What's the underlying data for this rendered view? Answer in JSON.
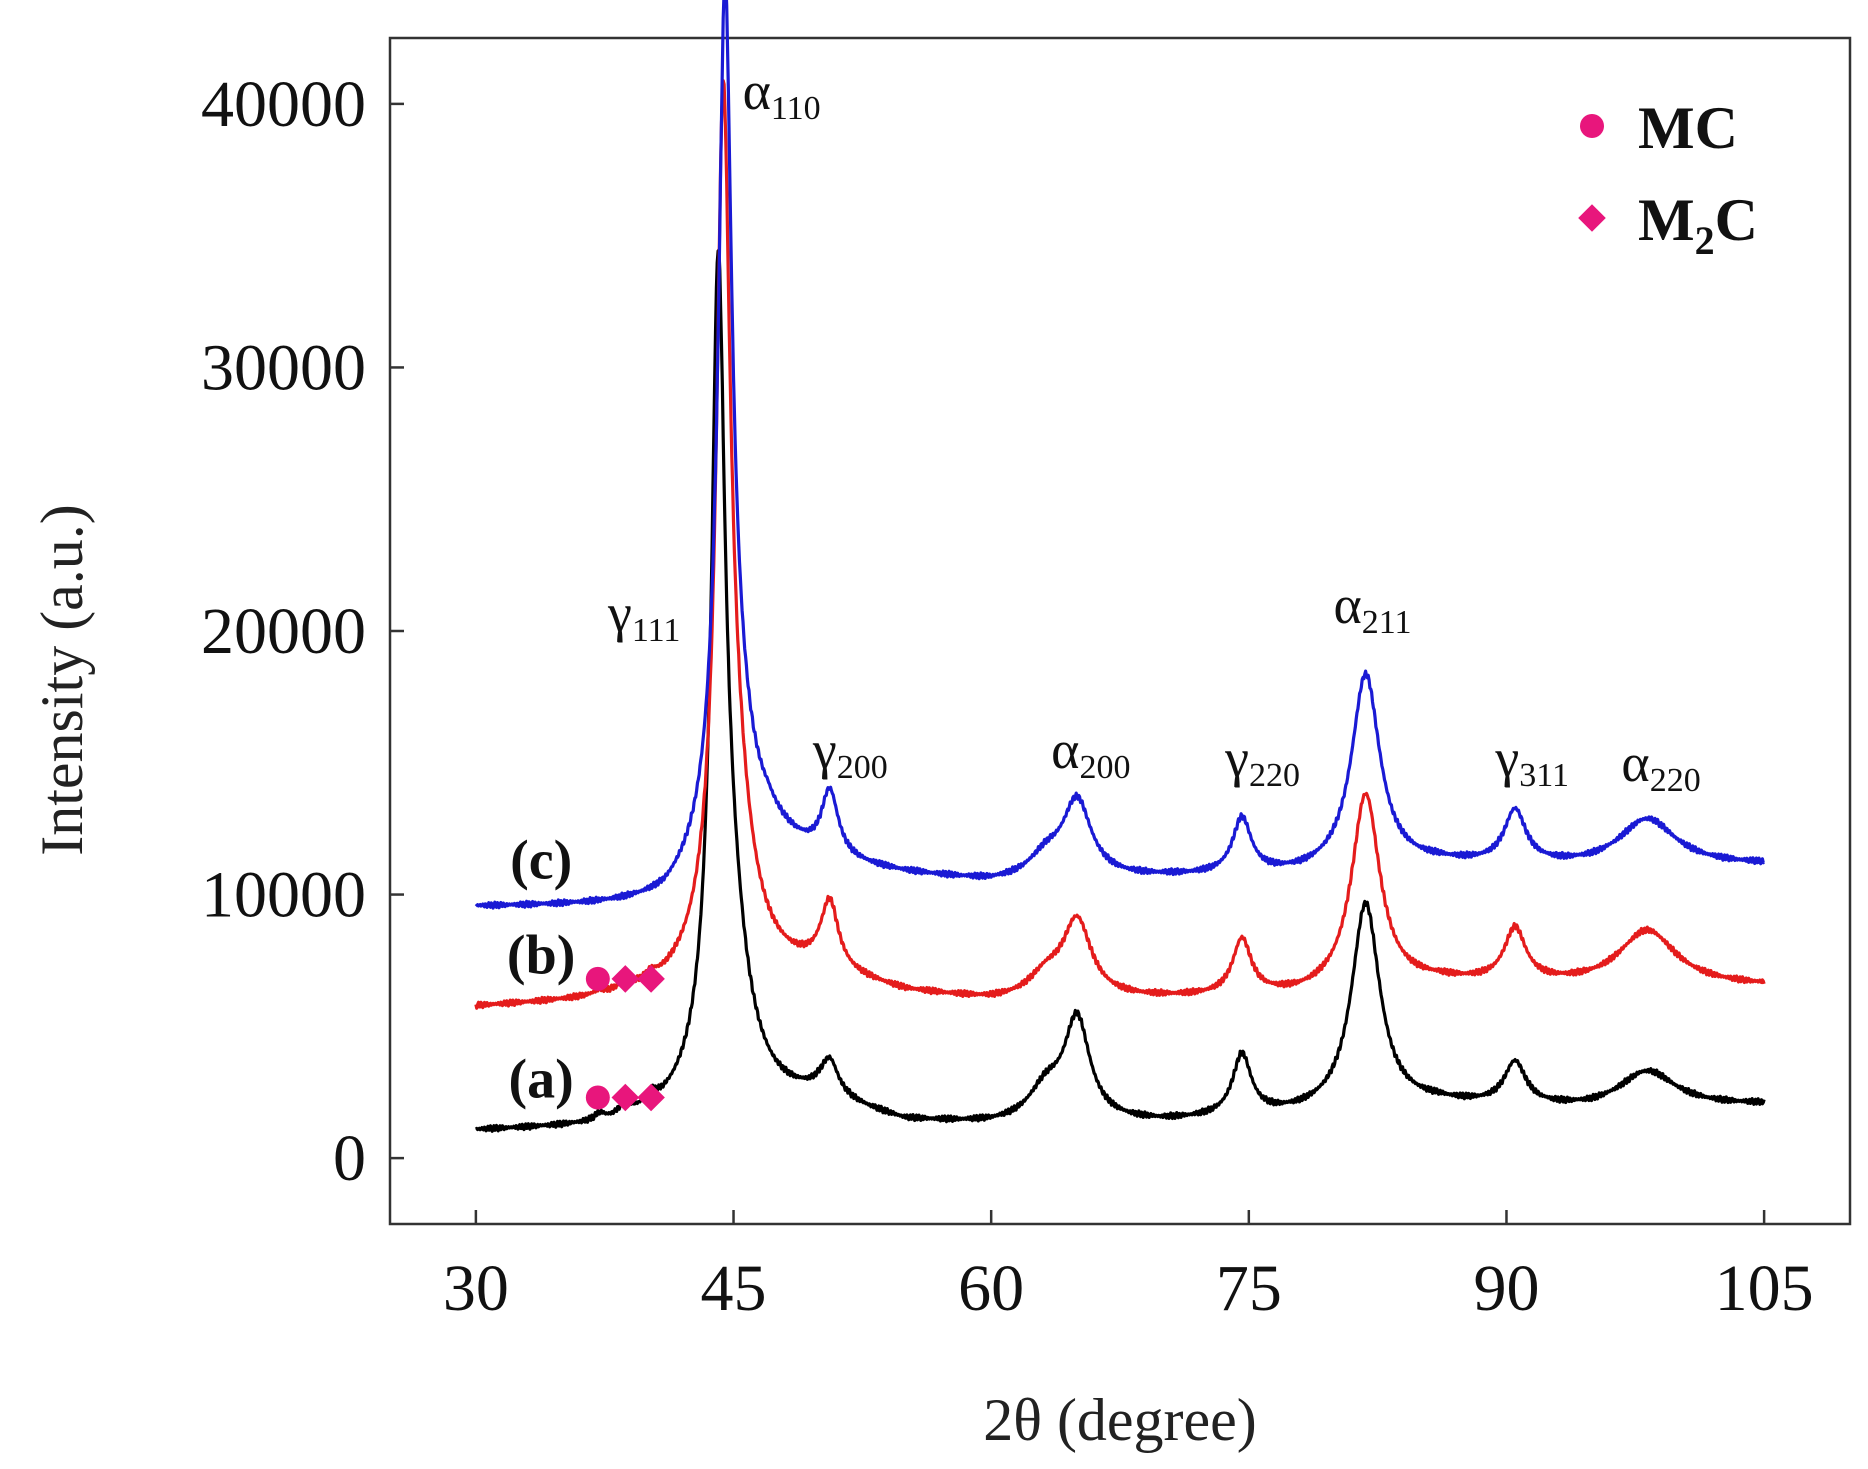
{
  "chart_data": {
    "type": "line",
    "xlabel": "2θ (degree)",
    "ylabel": "Intensity (a.u.)",
    "xlim": [
      25,
      110
    ],
    "ylim": [
      -2500,
      42500
    ],
    "xticks": [
      30,
      45,
      60,
      75,
      90,
      105
    ],
    "yticks": [
      0,
      10000,
      20000,
      30000,
      40000
    ],
    "x_tick_labels": [
      "30",
      "45",
      "60",
      "75",
      "90",
      "105"
    ],
    "y_tick_labels": [
      "0",
      "10000",
      "20000",
      "30000",
      "40000"
    ],
    "series": [
      {
        "name": "(a)",
        "color": "#000000",
        "baseline": [
          [
            30,
            1000
          ],
          [
            37,
            1100
          ],
          [
            41,
            1300
          ],
          [
            44,
            1500
          ],
          [
            50,
            2100
          ],
          [
            55,
            1300
          ],
          [
            60,
            1200
          ],
          [
            70,
            1300
          ],
          [
            78,
            1600
          ],
          [
            86,
            2000
          ],
          [
            95,
            1800
          ],
          [
            105,
            2000
          ]
        ],
        "peaks": [
          {
            "x": 37.2,
            "height": 250,
            "width": 0.35
          },
          {
            "x": 38.7,
            "height": 500,
            "width": 0.35
          },
          {
            "x": 40.2,
            "height": 350,
            "width": 0.35
          },
          {
            "x": 44.1,
            "height": 26000,
            "width": 0.45
          },
          {
            "x": 44.6,
            "height": 8000,
            "width": 1.3
          },
          {
            "x": 50.6,
            "height": 1300,
            "width": 0.6
          },
          {
            "x": 63.2,
            "height": 1200,
            "width": 1.2
          },
          {
            "x": 65.0,
            "height": 3800,
            "width": 0.9
          },
          {
            "x": 74.6,
            "height": 2300,
            "width": 0.65
          },
          {
            "x": 81.8,
            "height": 7800,
            "width": 1.0
          },
          {
            "x": 90.5,
            "height": 1600,
            "width": 0.75
          },
          {
            "x": 98.2,
            "height": 1400,
            "width": 2.0
          }
        ]
      },
      {
        "name": "(b)",
        "color": "#e41c1c",
        "baseline": [
          [
            30,
            5700
          ],
          [
            37,
            5900
          ],
          [
            41,
            6100
          ],
          [
            44,
            6500
          ],
          [
            50,
            6900
          ],
          [
            55,
            6200
          ],
          [
            60,
            5900
          ],
          [
            70,
            6000
          ],
          [
            78,
            6100
          ],
          [
            86,
            6600
          ],
          [
            95,
            6500
          ],
          [
            105,
            6500
          ]
        ],
        "peaks": [
          {
            "x": 37.2,
            "height": 150,
            "width": 0.35
          },
          {
            "x": 38.7,
            "height": 350,
            "width": 0.35
          },
          {
            "x": 40.2,
            "height": 250,
            "width": 0.35
          },
          {
            "x": 44.4,
            "height": 27000,
            "width": 0.45
          },
          {
            "x": 44.8,
            "height": 8000,
            "width": 1.3
          },
          {
            "x": 50.6,
            "height": 2500,
            "width": 0.6
          },
          {
            "x": 63.2,
            "height": 800,
            "width": 1.2
          },
          {
            "x": 65.0,
            "height": 2900,
            "width": 1.0
          },
          {
            "x": 74.6,
            "height": 2100,
            "width": 0.65
          },
          {
            "x": 81.8,
            "height": 7400,
            "width": 1.0
          },
          {
            "x": 90.5,
            "height": 2000,
            "width": 0.75
          },
          {
            "x": 98.2,
            "height": 2100,
            "width": 2.0
          }
        ]
      },
      {
        "name": "(c)",
        "color": "#1a1ad4",
        "baseline": [
          [
            30,
            9500
          ],
          [
            41,
            9500
          ],
          [
            44,
            10300
          ],
          [
            47,
            11700
          ],
          [
            50,
            11100
          ],
          [
            55,
            10700
          ],
          [
            60,
            10400
          ],
          [
            70,
            10600
          ],
          [
            78,
            10700
          ],
          [
            86,
            11100
          ],
          [
            95,
            11000
          ],
          [
            105,
            11100
          ]
        ],
        "peaks": [
          {
            "x": 44.5,
            "height": 28000,
            "width": 0.45
          },
          {
            "x": 44.8,
            "height": 6500,
            "width": 1.3
          },
          {
            "x": 50.6,
            "height": 2500,
            "width": 0.6
          },
          {
            "x": 63.2,
            "height": 800,
            "width": 1.2
          },
          {
            "x": 65.0,
            "height": 2900,
            "width": 1.0
          },
          {
            "x": 74.6,
            "height": 2100,
            "width": 0.65
          },
          {
            "x": 81.8,
            "height": 7400,
            "width": 1.0
          },
          {
            "x": 90.5,
            "height": 2000,
            "width": 0.75
          },
          {
            "x": 98.2,
            "height": 1800,
            "width": 2.0
          }
        ]
      }
    ],
    "peak_labels": [
      {
        "symbol": "γ",
        "sub": "111",
        "x": 39.8,
        "y": 20000
      },
      {
        "symbol": "α",
        "sub": "110",
        "x": 47.8,
        "y": 39800
      },
      {
        "symbol": "γ",
        "sub": "200",
        "x": 51.8,
        "y": 14800
      },
      {
        "symbol": "α",
        "sub": "200",
        "x": 65.8,
        "y": 14800
      },
      {
        "symbol": "γ",
        "sub": "220",
        "x": 75.8,
        "y": 14500
      },
      {
        "symbol": "α",
        "sub": "211",
        "x": 82.2,
        "y": 20300
      },
      {
        "symbol": "γ",
        "sub": "311",
        "x": 91.5,
        "y": 14500
      },
      {
        "symbol": "α",
        "sub": "220",
        "x": 99.0,
        "y": 14300
      }
    ],
    "curve_labels": [
      {
        "text": "(c)",
        "x": 33.8,
        "y": 10600
      },
      {
        "text": "(b)",
        "x": 33.8,
        "y": 7000
      },
      {
        "text": "(a)",
        "x": 33.8,
        "y": 2300
      }
    ],
    "markers": [
      {
        "series": "(b)",
        "shape": "circle",
        "x": 37.1,
        "y": 6800
      },
      {
        "series": "(b)",
        "shape": "diamond",
        "x": 38.7,
        "y": 6800
      },
      {
        "series": "(b)",
        "shape": "diamond",
        "x": 40.2,
        "y": 6800
      },
      {
        "series": "(a)",
        "shape": "circle",
        "x": 37.1,
        "y": 2300
      },
      {
        "series": "(a)",
        "shape": "diamond",
        "x": 38.7,
        "y": 2300
      },
      {
        "series": "(a)",
        "shape": "diamond",
        "x": 40.2,
        "y": 2300
      }
    ],
    "marker_color": "#e8167c",
    "legend": {
      "position": "top-right",
      "entries": [
        {
          "shape": "circle",
          "label": "MC",
          "main": "MC",
          "sub": ""
        },
        {
          "shape": "diamond",
          "label": "M2C",
          "main": "M",
          "sub": "2",
          "tail": "C"
        }
      ]
    }
  }
}
